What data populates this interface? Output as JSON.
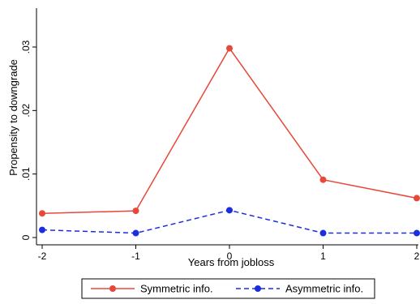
{
  "chart_data": {
    "type": "line",
    "xlabel": "Years from jobloss",
    "ylabel": "Propensity to downgrade",
    "x": [
      -2,
      -1,
      0,
      1,
      2
    ],
    "xlim": [
      -2,
      2
    ],
    "ylim": [
      0,
      0.03
    ],
    "xticks": [
      {
        "value": -2,
        "label": "-2"
      },
      {
        "value": -1,
        "label": "-1"
      },
      {
        "value": 0,
        "label": "0"
      },
      {
        "value": 1,
        "label": "1"
      },
      {
        "value": 2,
        "label": "2"
      }
    ],
    "yticks": [
      {
        "value": 0,
        "label": "0"
      },
      {
        "value": 0.01,
        "label": ".01"
      },
      {
        "value": 0.02,
        "label": ".02"
      },
      {
        "value": 0.03,
        "label": ".03"
      }
    ],
    "grid": false,
    "legend_position": "bottom",
    "series": [
      {
        "name": "Symmetric info.",
        "values": [
          0.0038,
          0.0042,
          0.0298,
          0.0091,
          0.0062
        ],
        "color": "#e8483a",
        "dash": "solid"
      },
      {
        "name": "Asymmetric info.",
        "values": [
          0.0012,
          0.0007,
          0.0043,
          0.0007,
          0.0007
        ],
        "color": "#1a2ee0",
        "dash": "dashed"
      }
    ]
  }
}
